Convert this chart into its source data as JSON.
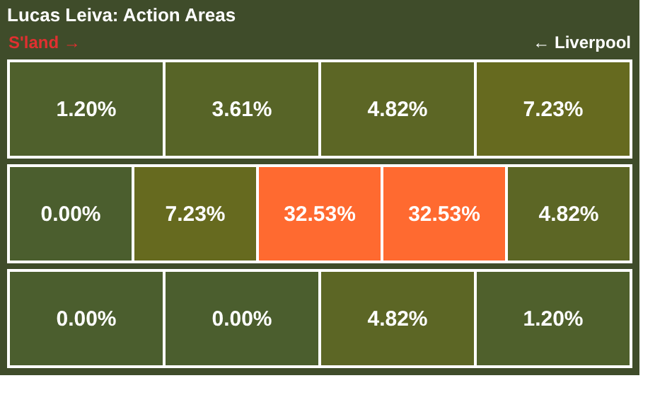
{
  "chart_data": [
    {
      "type": "other",
      "title": "Lucas Leiva: Action Areas",
      "annotations": [
        "S'land →",
        "← Liverpool"
      ],
      "categories": [
        null,
        null,
        null,
        null
      ],
      "values": [
        1.2,
        3.61,
        4.82,
        7.23
      ],
      "value_labels": [
        "1.20%",
        "3.61%",
        "4.82%",
        "7.23%"
      ]
    },
    {
      "type": "other",
      "categories": [
        null,
        null,
        null,
        null,
        null
      ],
      "values": [
        0.0,
        7.23,
        32.53,
        32.53,
        4.82
      ],
      "value_labels": [
        "0.00%",
        "7.23%",
        "32.53%",
        "32.53%",
        "4.82%"
      ]
    },
    {
      "type": "other",
      "categories": [
        null,
        null,
        null,
        null
      ],
      "values": [
        0.0,
        0.0,
        4.82,
        1.2
      ],
      "value_labels": [
        "0.00%",
        "0.00%",
        "4.82%",
        "1.20%"
      ]
    }
  ]
}
